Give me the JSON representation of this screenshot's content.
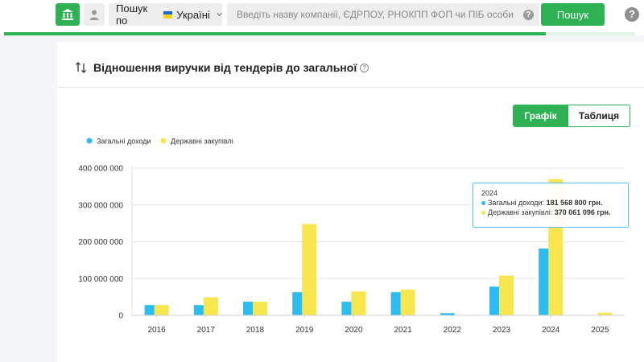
{
  "header": {
    "search_scope_prefix": "Пошук по",
    "search_scope_country": "Україні",
    "search_placeholder": "Введіть назву компанії, ЄДРПОУ, РНОКПП ФОП чи ПІБ особи",
    "search_value": "",
    "search_button_label": "Пошук",
    "help_label": "?",
    "input_help_label": "?",
    "progress_fraction": 0.86,
    "icons": {
      "org": "bank-building-icon",
      "person": "person-icon",
      "chevron": "chevron-down-icon"
    }
  },
  "card": {
    "title": "Відношення виручки від тендерів до загальної",
    "info_label": "?",
    "view_toggle": {
      "chart_label": "Графік",
      "table_label": "Таблиця",
      "active": "chart"
    }
  },
  "tooltip": {
    "year": "2024",
    "total_label": "Загальні доходи:",
    "total_value": "181 568 800 грн.",
    "tender_label": "Державні закупівлі:",
    "tender_value": "370 061 096 грн."
  },
  "colors": {
    "accent": "#2eb253",
    "total": "#2bbcf2",
    "tender": "#f7e64e"
  },
  "chart_data": {
    "type": "bar",
    "categories": [
      "2016",
      "2017",
      "2018",
      "2019",
      "2020",
      "2021",
      "2022",
      "2023",
      "2024",
      "2025"
    ],
    "series": [
      {
        "name": "Загальні доходи",
        "values": [
          28000000,
          28000000,
          37000000,
          63000000,
          37000000,
          63000000,
          6000000,
          78000000,
          181568800,
          0
        ]
      },
      {
        "name": "Державні закупівлі",
        "values": [
          28000000,
          49000000,
          37000000,
          248000000,
          65000000,
          70000000,
          0,
          108000000,
          370061096,
          7000000
        ]
      }
    ],
    "y_ticks": [
      {
        "value": 0,
        "label": "0"
      },
      {
        "value": 100000000,
        "label": "100 000 000"
      },
      {
        "value": 200000000,
        "label": "200 000 000"
      },
      {
        "value": 300000000,
        "label": "300 000 000"
      },
      {
        "value": 400000000,
        "label": "400 000 000"
      }
    ],
    "ylim": [
      0,
      400000000
    ],
    "grid": true,
    "legend_position": "top-left"
  }
}
